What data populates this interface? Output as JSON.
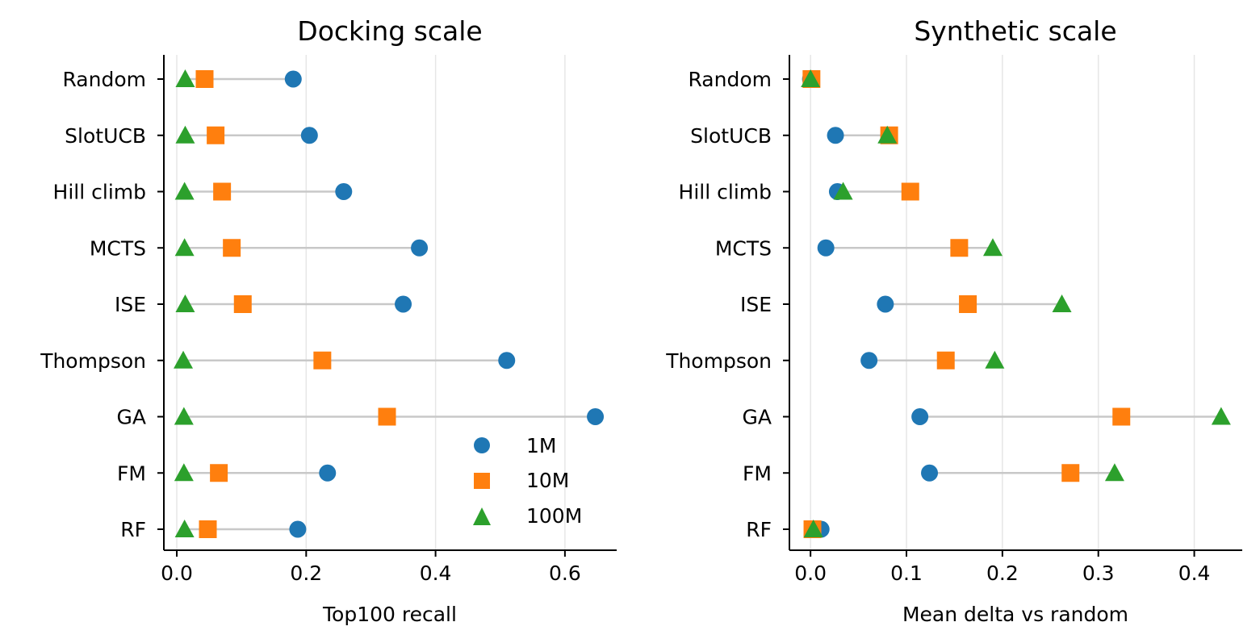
{
  "colors": {
    "1M": "#1f77b4",
    "10M": "#ff7f0e",
    "100M": "#2ca02c"
  },
  "chart_data": [
    {
      "type": "scatter",
      "title": "Docking scale",
      "xlabel": "Top100 recall",
      "ylabel": "",
      "xlim": [
        -0.02,
        0.68
      ],
      "xticks": [
        0.0,
        0.2,
        0.4,
        0.6
      ],
      "xtick_labels": [
        "0.0",
        "0.2",
        "0.4",
        "0.6"
      ],
      "grid": "vertical",
      "categories": [
        "Random",
        "SlotUCB",
        "Hill climb",
        "MCTS",
        "ISE",
        "Thompson",
        "GA",
        "FM",
        "RF"
      ],
      "series": [
        {
          "name": "1M",
          "marker": "circle",
          "values": [
            0.18,
            0.205,
            0.258,
            0.375,
            0.35,
            0.51,
            0.647,
            0.233,
            0.187
          ]
        },
        {
          "name": "10M",
          "marker": "square",
          "values": [
            0.043,
            0.06,
            0.07,
            0.085,
            0.102,
            0.225,
            0.325,
            0.065,
            0.048
          ]
        },
        {
          "name": "100M",
          "marker": "triangle",
          "values": [
            0.013,
            0.013,
            0.012,
            0.012,
            0.013,
            0.01,
            0.011,
            0.011,
            0.012
          ]
        }
      ],
      "legend": {
        "placement": "lower-right",
        "entries": [
          "1M",
          "10M",
          "100M"
        ]
      }
    },
    {
      "type": "scatter",
      "title": "Synthetic scale",
      "xlabel": "Mean delta vs random",
      "ylabel": "",
      "xlim": [
        -0.022,
        0.45
      ],
      "xticks": [
        0.0,
        0.1,
        0.2,
        0.3,
        0.4
      ],
      "xtick_labels": [
        "0.0",
        "0.1",
        "0.2",
        "0.3",
        "0.4"
      ],
      "grid": "vertical",
      "categories": [
        "Random",
        "SlotUCB",
        "Hill climb",
        "MCTS",
        "ISE",
        "Thompson",
        "GA",
        "FM",
        "RF"
      ],
      "series": [
        {
          "name": "1M",
          "marker": "circle",
          "values": [
            0.0,
            0.026,
            0.028,
            0.016,
            0.078,
            0.061,
            0.114,
            0.124,
            0.011
          ]
        },
        {
          "name": "10M",
          "marker": "square",
          "values": [
            0.001,
            0.082,
            0.104,
            0.155,
            0.164,
            0.141,
            0.324,
            0.271,
            0.002
          ]
        },
        {
          "name": "100M",
          "marker": "triangle",
          "values": [
            0.0,
            0.08,
            0.034,
            0.19,
            0.262,
            0.192,
            0.428,
            0.317,
            0.003
          ]
        }
      ]
    }
  ]
}
